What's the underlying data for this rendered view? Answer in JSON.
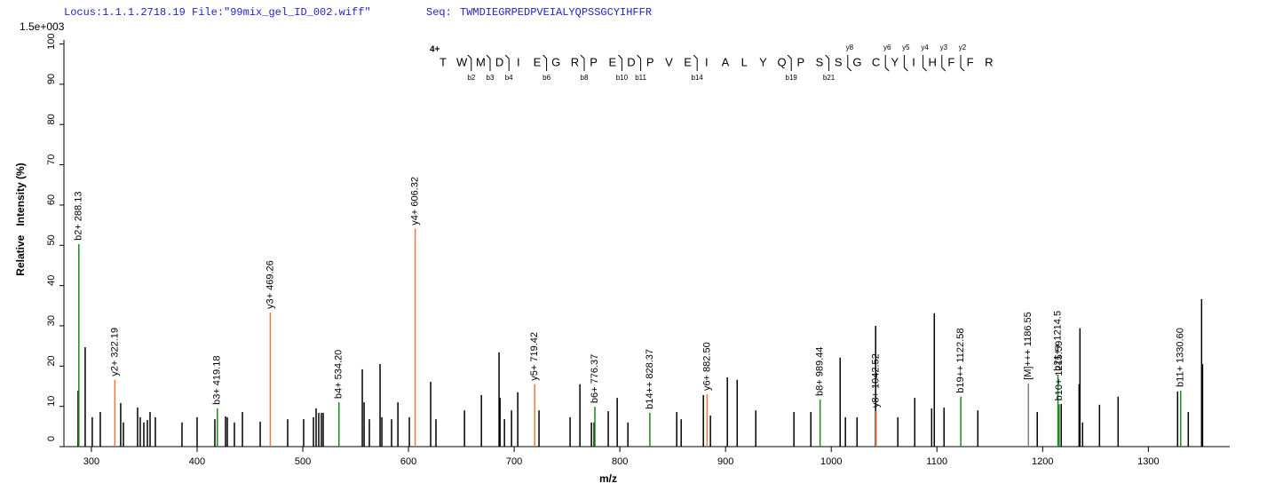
{
  "chart_data": {
    "type": "spectrum",
    "header": {
      "locus": "Locus:1.1.1.2718.19 File:\"99mix_gel_ID_002.wiff\"",
      "seq_label": "Seq:",
      "seq": "TWMDIEGRPEDPVEIALYQPSSGCYIHFFR"
    },
    "scale_note": "1.5e+003",
    "x_label": "m/z",
    "y_label": "Relative   Intensity (%)",
    "xlim": [
      274,
      1377
    ],
    "ylim": [
      0,
      101
    ],
    "xticks": [
      300,
      400,
      500,
      600,
      700,
      800,
      900,
      1000,
      1100,
      1200,
      1300
    ],
    "yticks": [
      0,
      10,
      20,
      30,
      40,
      50,
      60,
      70,
      80,
      90,
      100
    ],
    "peak_color": "#000000",
    "peaks": {
      "x": [
        287.4,
        294.1,
        300.8,
        308.4,
        327.7,
        330.3,
        343.7,
        346.2,
        349.6,
        353,
        355.5,
        360.5,
        385.7,
        400,
        416.8,
        426.9,
        428.6,
        435.3,
        442.9,
        459.7,
        485.7,
        500.8,
        510.1,
        512.6,
        515.1,
        517.6,
        519.3,
        556.3,
        558,
        563,
        573.1,
        574.8,
        584,
        590,
        600.8,
        621,
        626,
        653,
        669,
        685.7,
        686.6,
        690.8,
        697.5,
        703.4,
        723.5,
        752.9,
        762.2,
        773.1,
        775.6,
        789,
        797.5,
        807.6,
        853.8,
        858,
        879,
        885.7,
        901.7,
        911,
        928.6,
        964.7,
        980.7,
        1008.4,
        1013.4,
        1024.4,
        1042,
        1063,
        1079,
        1095,
        1097.5,
        1106.7,
        1138.7,
        1194.9,
        1217.6,
        1234.5,
        1235.3,
        1237.8,
        1253.8,
        1271.4,
        1327.7,
        1337.8,
        1350.4,
        1351.3
      ],
      "values": [
        13.9,
        24.7,
        7.3,
        8.6,
        10.8,
        6,
        9.7,
        7.3,
        6,
        6.6,
        8.6,
        7.3,
        6,
        7.3,
        6.8,
        7.5,
        7.3,
        6,
        8.6,
        6.2,
        6.8,
        6.8,
        7.3,
        9.5,
        8.4,
        8.4,
        8.4,
        19.2,
        11,
        6.8,
        20.5,
        7.3,
        6.8,
        11,
        7.3,
        16.1,
        6.8,
        9,
        12.8,
        23.4,
        12.1,
        6.8,
        9,
        13.5,
        9,
        7.3,
        15.5,
        6,
        6,
        8.8,
        12.1,
        6,
        8.6,
        6.8,
        12.8,
        7.7,
        17.2,
        16.6,
        9,
        8.6,
        8.6,
        22.1,
        7.3,
        7.3,
        30,
        7.3,
        12.1,
        9.5,
        33.1,
        9.7,
        9,
        8.6,
        10.6,
        15.5,
        29.4,
        6,
        10.4,
        12.4,
        13.7,
        8.6,
        36.6,
        20.5
      ]
    },
    "ions": [
      {
        "label": "b2+ 288.13",
        "x": 288.13,
        "value": 50.3,
        "color": "#1a8a1a"
      },
      {
        "label": "y2+ 322.19",
        "x": 322.19,
        "value": 16.6,
        "color": "#f07838"
      },
      {
        "label": "b3+ 419.18",
        "x": 419.18,
        "value": 9.5,
        "color": "#1a8a1a"
      },
      {
        "label": "y3+ 469.26",
        "x": 469.26,
        "value": 33.3,
        "color": "#f07838"
      },
      {
        "label": "b4+ 534.20",
        "x": 534.2,
        "value": 11.0,
        "color": "#1a8a1a"
      },
      {
        "label": "y4+ 606.32",
        "x": 606.32,
        "value": 54.1,
        "color": "#f07838"
      },
      {
        "label": "y5+ 719.42",
        "x": 719.42,
        "value": 15.5,
        "color": "#f07838"
      },
      {
        "label": "b6+ 776.37",
        "x": 776.37,
        "value": 9.9,
        "color": "#1a8a1a"
      },
      {
        "label": "b14++ 828.37",
        "x": 828.37,
        "value": 8.4,
        "color": "#1a8a1a"
      },
      {
        "label": "y6+ 882.50",
        "x": 882.5,
        "value": 13.0,
        "color": "#f07838"
      },
      {
        "label": "b8+ 989.44",
        "x": 989.44,
        "value": 11.7,
        "color": "#1a8a1a"
      },
      {
        "label": "y8+ 1042.52",
        "x": 1042.52,
        "value": 8.8,
        "color": "#f07838"
      },
      {
        "label": "b19++ 1122.58",
        "x": 1122.58,
        "value": 12.4,
        "color": "#1a8a1a"
      },
      {
        "label": "[M]+++ 1186.55",
        "x": 1186.55,
        "value": 15.7,
        "color": "#808080"
      },
      {
        "label": "b21++ 1214.5",
        "x": 1214.5,
        "value": 17.9,
        "color": "#1a8a1a"
      },
      {
        "label": "b10+ 1215.59",
        "x": 1215.59,
        "value": 10.5,
        "color": "#1a8a1a"
      },
      {
        "label": "b11+ 1330.60",
        "x": 1330.6,
        "value": 13.9,
        "color": "#1a8a1a"
      }
    ],
    "peptide": {
      "charge": "4+",
      "residues": [
        "T",
        "W",
        "M",
        "D",
        "I",
        "E",
        "G",
        "R",
        "P",
        "E",
        "D",
        "P",
        "V",
        "E",
        "I",
        "A",
        "L",
        "Y",
        "Q",
        "P",
        "S",
        "S",
        "G",
        "C",
        "Y",
        "I",
        "H",
        "F",
        "F",
        "R"
      ],
      "b_ions": [
        "b2",
        "b3",
        "b4",
        "b6",
        "b8",
        "b10",
        "b11",
        "b14",
        "b19",
        "b21"
      ],
      "y_ions": [
        "y8",
        "y6",
        "y5",
        "y4",
        "y3",
        "y2"
      ],
      "b_color": "#1a8a1a",
      "y_color": "#f07838",
      "charge_color": "#0000ff"
    }
  }
}
